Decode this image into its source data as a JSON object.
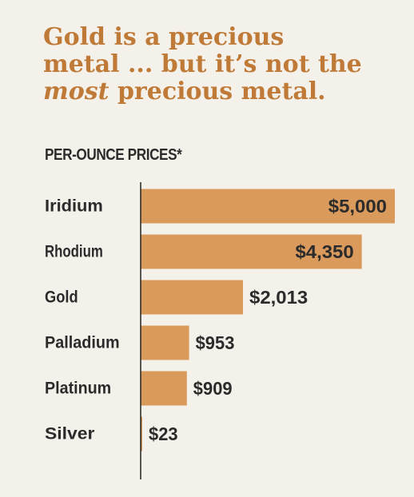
{
  "headline": {
    "line1": "Gold is a precious",
    "line2": "metal ... but it’s not the",
    "line3_emph": "most",
    "line3_rest": " precious metal."
  },
  "chart_data": {
    "type": "bar",
    "orientation": "horizontal",
    "subtitle": "PER-OUNCE PRICES*",
    "categories": [
      "Iridium",
      "Rhodium",
      "Gold",
      "Palladium",
      "Platinum",
      "Silver"
    ],
    "values": [
      5000,
      4350,
      2013,
      953,
      909,
      23
    ],
    "value_labels": [
      "$5,000",
      "$4,350",
      "$2,013",
      "$953",
      "$909",
      "$23"
    ],
    "label_inside": [
      true,
      true,
      false,
      false,
      false,
      false
    ],
    "xlim": [
      0,
      5000
    ],
    "grid": false,
    "legend": "none",
    "bar_color": "#d99a5c",
    "text_color": "#2b2b2b"
  }
}
